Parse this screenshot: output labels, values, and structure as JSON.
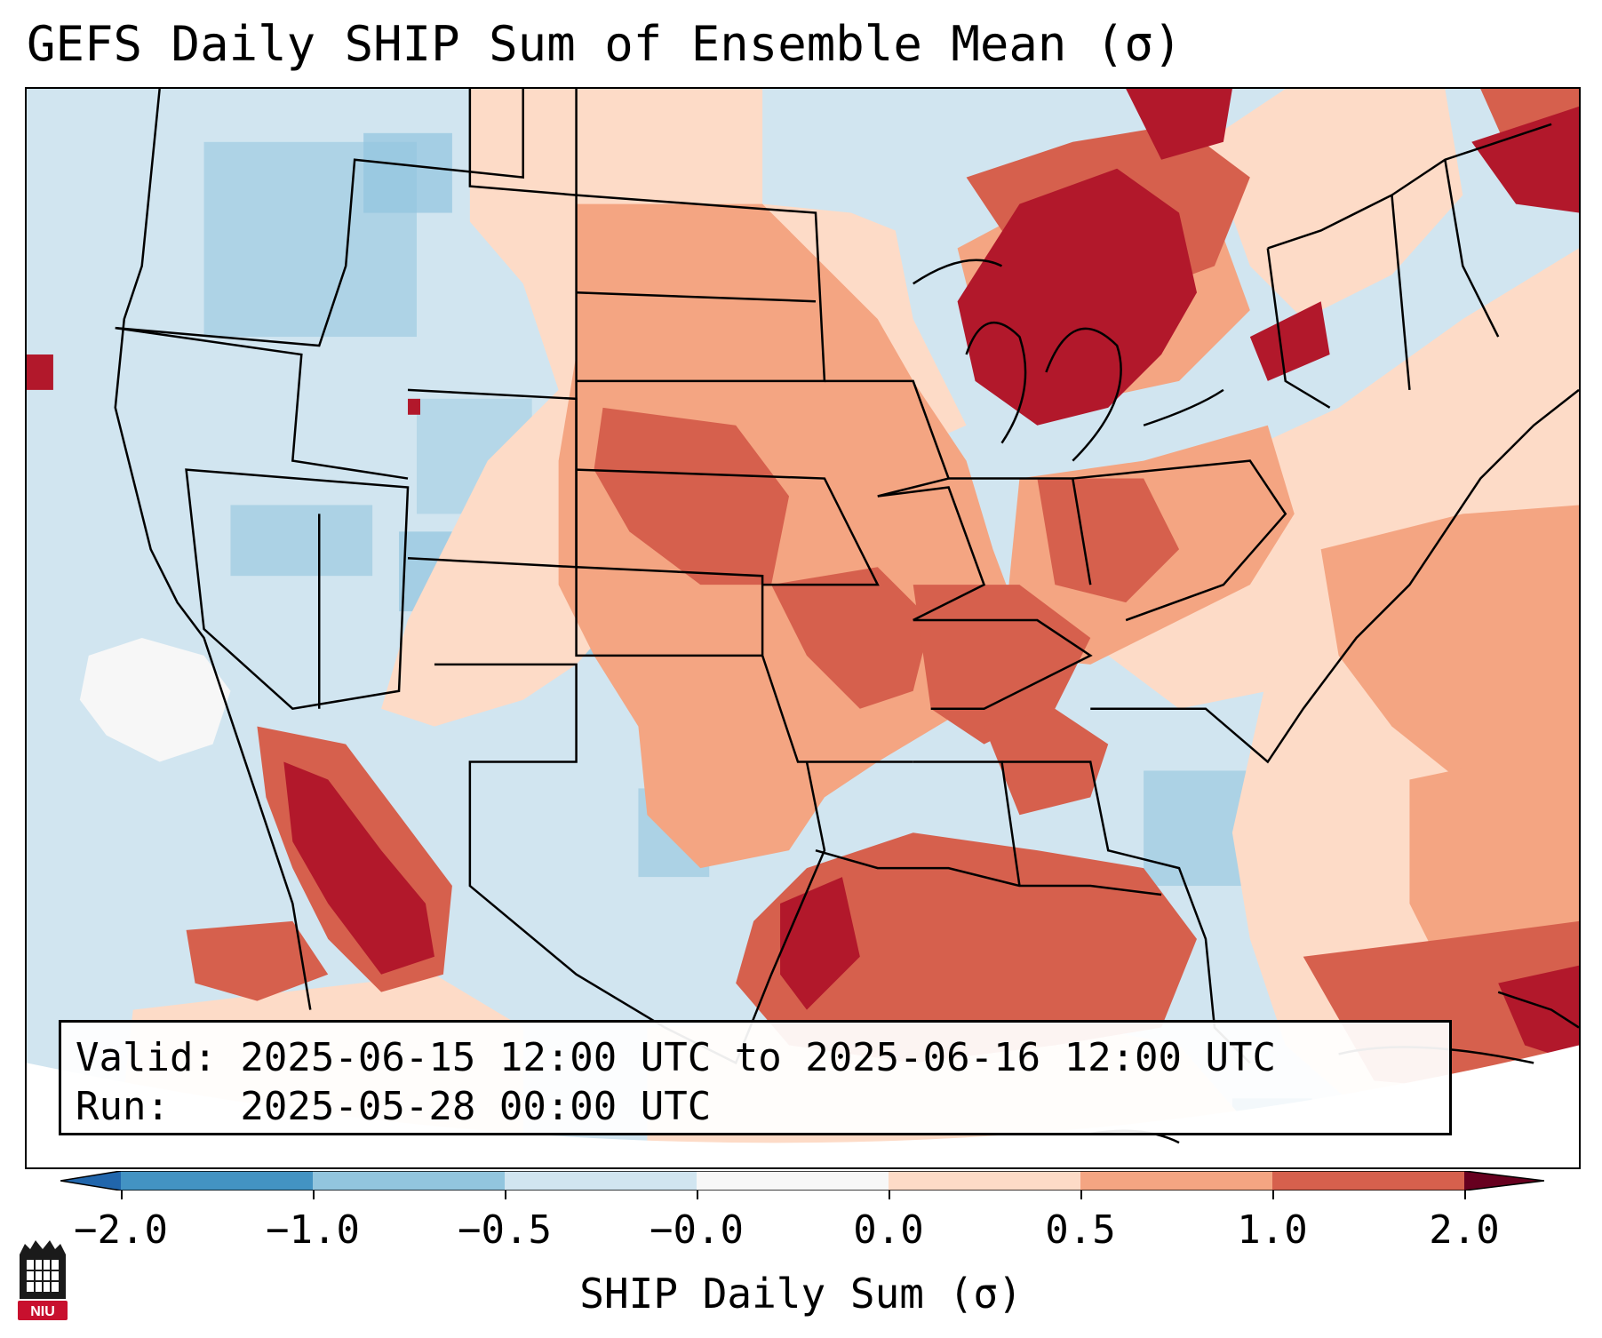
{
  "title": "GEFS Daily SHIP Sum of Ensemble Mean (σ)",
  "info": {
    "valid_line": "Valid: 2025-06-15 12:00 UTC to 2025-06-16 12:00 UTC",
    "run_line": "Run:   2025-05-28 00:00 UTC"
  },
  "colorbar": {
    "label": "SHIP Daily Sum (σ)",
    "tick_labels": [
      "−2.0",
      "−1.0",
      "−0.5",
      "−0.0",
      "0.0",
      "0.5",
      "1.0",
      "2.0"
    ],
    "colors": [
      "#4393c3",
      "#92c5de",
      "#d1e5f0",
      "#f7f7f7",
      "#fddbc7",
      "#f4a582",
      "#d6604d",
      "#b2182b"
    ],
    "under_color": "#2166ac",
    "over_color": "#67001f"
  },
  "logo": {
    "text": "NIU",
    "accent": "#c8102e"
  },
  "map": {
    "region": "Contiguous United States",
    "ocean_color": "#d1e5f0",
    "border_color": "#000000"
  }
}
